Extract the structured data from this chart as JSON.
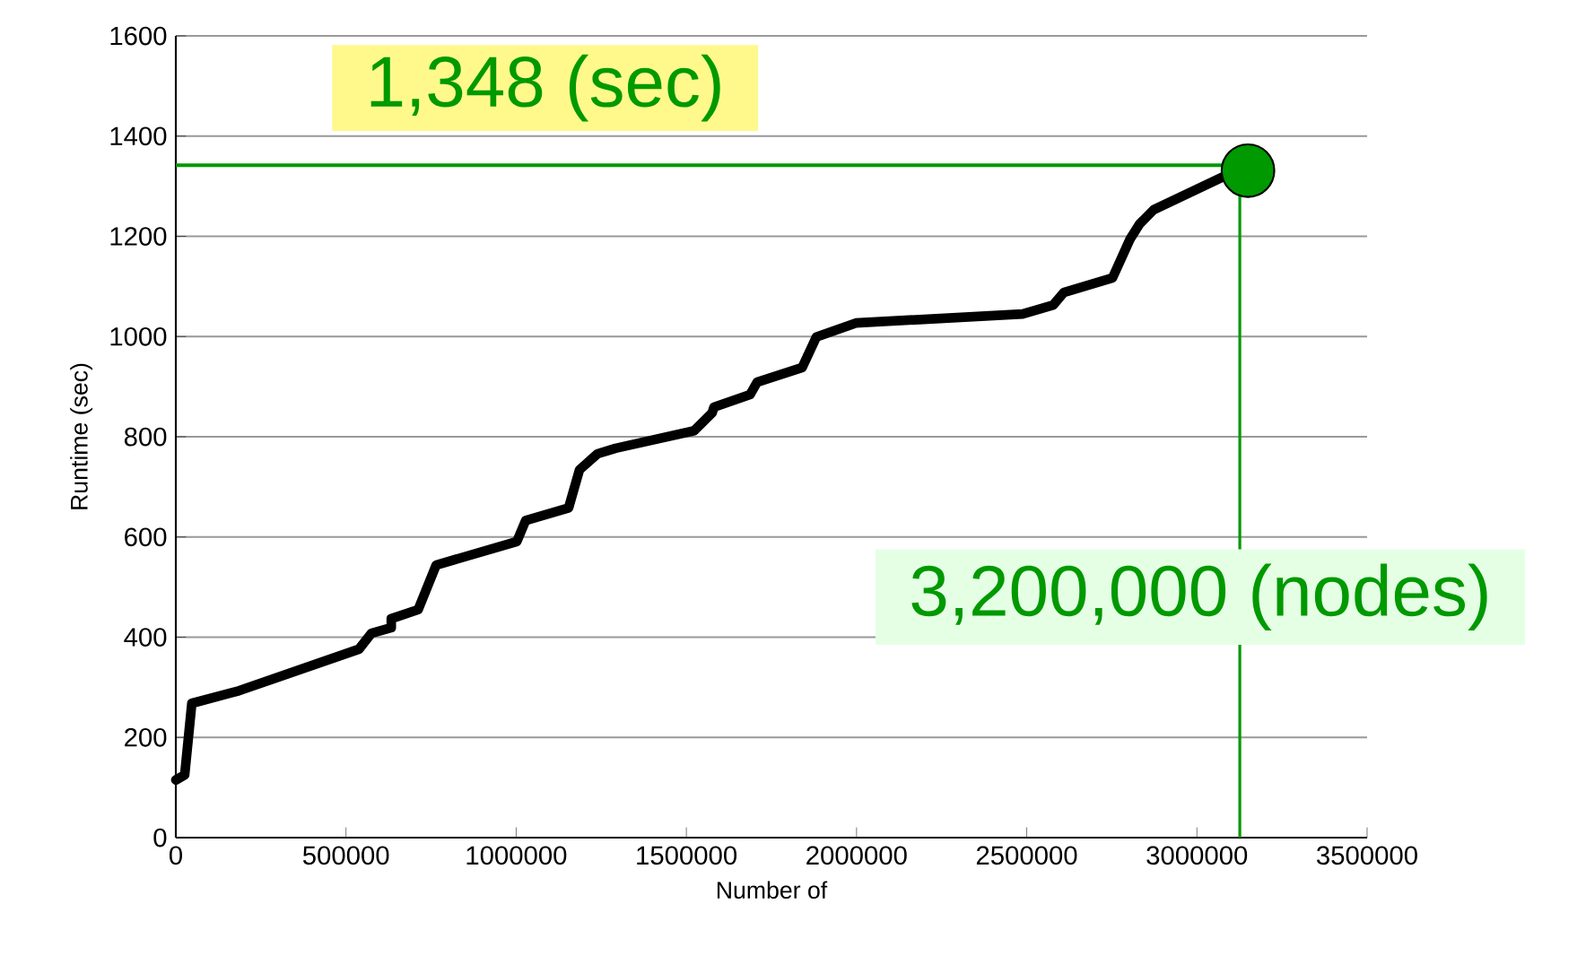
{
  "chart_data": {
    "type": "line",
    "xlabel": "Number of",
    "ylabel": "Runtime (sec)",
    "xlim": [
      0,
      3500000
    ],
    "ylim": [
      0,
      1600
    ],
    "xticks": [
      0,
      500000,
      1000000,
      1500000,
      2000000,
      2500000,
      3000000,
      3500000
    ],
    "yticks": [
      0,
      200,
      400,
      600,
      800,
      1000,
      1200,
      1400,
      1600
    ],
    "grid": "y",
    "series": [
      {
        "color": "#000000",
        "marker": "none",
        "x": [
          0,
          26000,
          47000,
          185000,
          538000,
          575000,
          633000,
          633000,
          712000,
          765000,
          1002000,
          1028000,
          1154000,
          1186000,
          1239000,
          1292000,
          1523000,
          1576000,
          1581000,
          1687000,
          1708000,
          1840000,
          1882000,
          1998000,
          2488000,
          2578000,
          2609000,
          2752000,
          2804000,
          2831000,
          2873000,
          3084000
        ],
        "values": [
          115,
          125,
          268,
          293,
          376,
          408,
          419,
          437,
          455,
          544,
          591,
          633,
          658,
          734,
          766,
          777,
          812,
          848,
          859,
          884,
          909,
          938,
          999,
          1027,
          1045,
          1063,
          1088,
          1117,
          1195,
          1224,
          1253,
          1321
        ]
      },
      {
        "type": "scatter",
        "color": "#009900",
        "marker": "circle",
        "x": [
          3150000
        ],
        "values": [
          1331
        ]
      }
    ],
    "ref_lines": [
      {
        "axis": "y",
        "value": 1342,
        "label": "1,348 (sec)",
        "color": "#009900"
      },
      {
        "axis": "x",
        "value": 3126000,
        "label": "3,200,000 (nodes)",
        "color": "#009900"
      }
    ]
  }
}
